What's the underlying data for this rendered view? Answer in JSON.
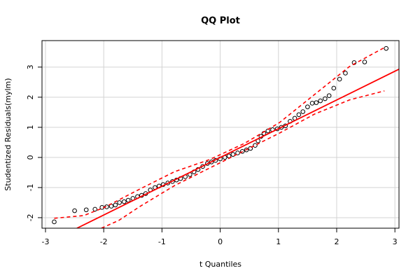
{
  "chart_data": {
    "type": "scatter",
    "title": "QQ Plot",
    "x_label": "t Quantiles",
    "y_label": "Studentized Residuals(mylm)",
    "xlim": [
      -3.06,
      3.07
    ],
    "ylim": [
      -2.35,
      3.88
    ],
    "xticks": [
      -3,
      -2,
      -1,
      0,
      1,
      2,
      3
    ],
    "yticks": [
      -2,
      -1,
      0,
      1,
      2,
      3
    ],
    "grid": true,
    "series": [
      {
        "kind": "points",
        "color": "#000000",
        "x": [
          -2.85,
          -2.5,
          -2.3,
          -2.15,
          -2.03,
          -1.95,
          -1.87,
          -1.8,
          -1.73,
          -1.65,
          -1.58,
          -1.5,
          -1.42,
          -1.35,
          -1.28,
          -1.2,
          -1.12,
          -1.05,
          -0.98,
          -0.9,
          -0.82,
          -0.75,
          -0.68,
          -0.6,
          -0.52,
          -0.45,
          -0.38,
          -0.3,
          -0.22,
          -0.15,
          -0.08,
          0,
          0.08,
          0.15,
          0.22,
          0.3,
          0.38,
          0.45,
          0.52,
          0.6,
          0.65,
          0.7,
          0.75,
          0.82,
          0.9,
          0.98,
          1.05,
          1.12,
          1.2,
          1.28,
          1.35,
          1.42,
          1.5,
          1.58,
          1.65,
          1.72,
          1.8,
          1.87,
          1.95,
          2.05,
          2.15,
          2.3,
          2.48,
          2.85
        ],
        "values": [
          -2.14,
          -1.77,
          -1.74,
          -1.72,
          -1.66,
          -1.64,
          -1.62,
          -1.58,
          -1.5,
          -1.47,
          -1.42,
          -1.36,
          -1.3,
          -1.26,
          -1.2,
          -1.08,
          -1.0,
          -0.95,
          -0.9,
          -0.85,
          -0.8,
          -0.75,
          -0.7,
          -0.64,
          -0.57,
          -0.48,
          -0.4,
          -0.3,
          -0.2,
          -0.15,
          -0.1,
          -0.05,
          0.0,
          0.05,
          0.1,
          0.15,
          0.2,
          0.25,
          0.3,
          0.4,
          0.55,
          0.7,
          0.8,
          0.88,
          0.92,
          0.95,
          1.0,
          1.05,
          1.2,
          1.3,
          1.42,
          1.52,
          1.68,
          1.8,
          1.82,
          1.88,
          1.95,
          2.05,
          2.3,
          2.6,
          2.8,
          3.15,
          3.17,
          3.62
        ]
      },
      {
        "kind": "line",
        "color": "#ff0000",
        "dash": false,
        "x": [
          -2.46,
          3.07
        ],
        "values": [
          -2.35,
          2.93
        ]
      },
      {
        "kind": "line",
        "color": "#ff0000",
        "dash": true,
        "x": [
          -2.85,
          -2.34,
          -1.98,
          -1.38,
          -0.78,
          -0.18,
          0.42,
          1.02,
          1.62,
          2.22,
          2.82
        ],
        "values": [
          -2.02,
          -1.93,
          -1.65,
          -1.05,
          -0.47,
          -0.07,
          0.47,
          1.16,
          2.09,
          3.02,
          3.65
        ]
      },
      {
        "kind": "line",
        "color": "#ff0000",
        "dash": true,
        "x": [
          -2.04,
          -1.74,
          -1.38,
          -0.78,
          -0.18,
          0.42,
          1.02,
          1.62,
          2.22,
          2.82
        ],
        "values": [
          -2.35,
          -2.09,
          -1.63,
          -0.93,
          -0.35,
          0.23,
          0.81,
          1.44,
          1.91,
          2.21
        ]
      }
    ]
  }
}
